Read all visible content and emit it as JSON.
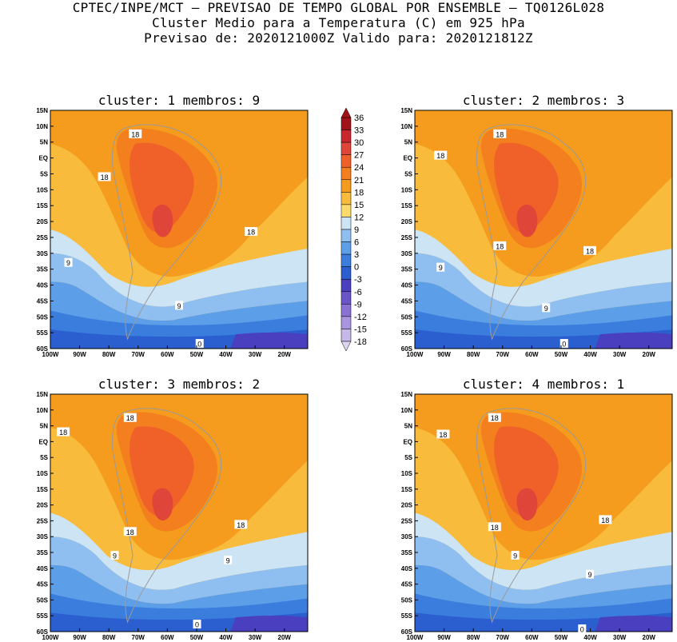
{
  "title": {
    "line1": "CPTEC/INPE/MCT – PREVISAO DE TEMPO GLOBAL POR ENSEMBLE – TQ0126L028",
    "line2": "Cluster Medio para a Temperatura (C) em 925 hPa",
    "line3": "Previsao de: 2020121000Z   Valido para: 2020121812Z"
  },
  "chart_data": {
    "type": "heatmap",
    "lat_ticks": [
      "15N",
      "10N",
      "5N",
      "EQ",
      "5S",
      "10S",
      "15S",
      "20S",
      "25S",
      "30S",
      "35S",
      "40S",
      "45S",
      "50S",
      "55S",
      "60S"
    ],
    "lon_ticks": [
      "100W",
      "90W",
      "80W",
      "70W",
      "60W",
      "50W",
      "40W",
      "30W",
      "20W"
    ],
    "colorbar": {
      "levels": [
        36,
        33,
        30,
        27,
        24,
        21,
        18,
        15,
        12,
        9,
        6,
        3,
        0,
        -3,
        -6,
        -9,
        -12,
        -15,
        -18
      ],
      "colors": [
        "#a01419",
        "#c8282d",
        "#e0453a",
        "#ef6128",
        "#f37f1e",
        "#f59b1e",
        "#f8bb3c",
        "#fadb6b",
        "#cde4f5",
        "#8fbff0",
        "#5c9ee8",
        "#3a7ddd",
        "#2b5fd0",
        "#4a3fbf",
        "#6a55c8",
        "#8a72d4",
        "#a895dd",
        "#c6b8e8",
        "#ddd3f2"
      ]
    },
    "panels": [
      {
        "label": "cluster: 1   membros: 9",
        "cluster": 1,
        "membros": 9,
        "contour_labels": [
          "18",
          "18",
          "18",
          "9",
          "9",
          "0"
        ]
      },
      {
        "label": "cluster: 2   membros: 3",
        "cluster": 2,
        "membros": 3,
        "contour_labels": [
          "18",
          "18",
          "18",
          "18",
          "9",
          "9",
          "0"
        ]
      },
      {
        "label": "cluster: 3   membros: 2",
        "cluster": 3,
        "membros": 2,
        "contour_labels": [
          "18",
          "18",
          "18",
          "18",
          "9",
          "9",
          "0"
        ]
      },
      {
        "label": "cluster: 4   membros: 1",
        "cluster": 4,
        "membros": 1,
        "contour_labels": [
          "18",
          "18",
          "18",
          "18",
          "9",
          "9",
          "0"
        ]
      }
    ]
  }
}
